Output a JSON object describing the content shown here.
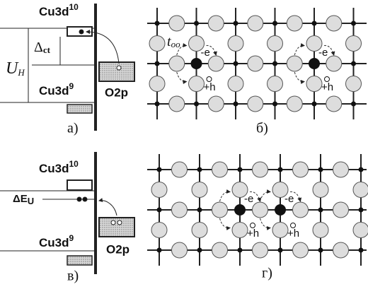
{
  "panel_a": {
    "label": "а)",
    "upper_level": "Cu3d",
    "upper_sup": "10",
    "lower_level": "Cu3d",
    "lower_sup": "9",
    "gap": "Δ",
    "gap_sub": "ct",
    "hubbard": "U",
    "hubbard_sub": "H",
    "band": "O2p"
  },
  "panel_b": {
    "label": "б)",
    "hopping": "t",
    "hopping_sub": "oo",
    "electrons": [
      "-e",
      "-e"
    ],
    "holes": [
      "+h",
      "+h"
    ]
  },
  "panel_c": {
    "label": "в)",
    "upper_level": "Cu3d",
    "upper_sup": "10",
    "lower_level": "Cu3d",
    "lower_sup": "9",
    "shift": "ΔE",
    "shift_sub": "U",
    "band": "O2p"
  },
  "panel_d": {
    "label": "г)",
    "electrons": [
      "-e",
      "-e"
    ],
    "holes": [
      "+h",
      "+h"
    ]
  }
}
